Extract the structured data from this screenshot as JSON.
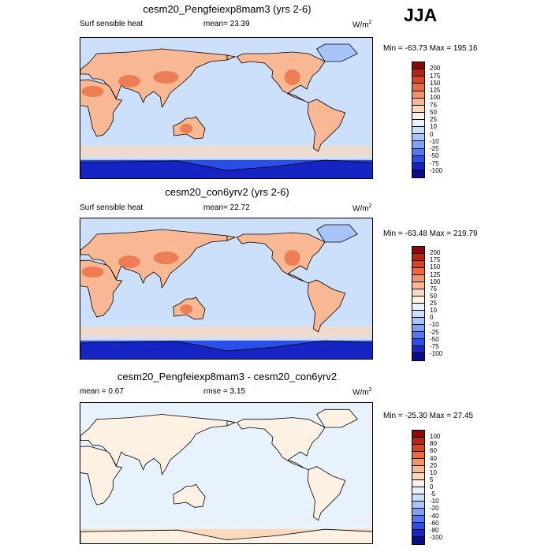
{
  "season": "JJA",
  "colors": {
    "abs_scale": [
      "#0a0a8c",
      "#1525c4",
      "#2a4ee8",
      "#5078f0",
      "#7ea0f5",
      "#a8c4f8",
      "#cde0fb",
      "#e8f2fd",
      "#fdf1e4",
      "#fcd8bc",
      "#f8b893",
      "#f39568",
      "#ea6a3f",
      "#d84421",
      "#b82412",
      "#8c0808"
    ],
    "diff_scale": [
      "#0a0a8c",
      "#1525c4",
      "#2a4ee8",
      "#5078f0",
      "#7ea0f5",
      "#a8c4f8",
      "#cde0fb",
      "#e8f2fd",
      "#fdf1e4",
      "#fcd8bc",
      "#f8b893",
      "#f39568",
      "#ea6a3f",
      "#d84421",
      "#b82412",
      "#8c0808"
    ],
    "coast": "#000000"
  },
  "panels": [
    {
      "title": "cesm20_Pengfeiexp8mam3 (yrs 2-6)",
      "left_label": "Surf sensible heat",
      "center_label": "mean=  23.39",
      "units": "W/m",
      "units_sup": "2",
      "minmax": "Min = -63.73 Max = 195.16",
      "levels": [
        "200",
        "175",
        "150",
        "125",
        "100",
        "75",
        "50",
        "25",
        "10",
        "0",
        "-10",
        "-25",
        "-50",
        "-75",
        "-100"
      ]
    },
    {
      "title": "cesm20_con6yrv2 (yrs 2-6)",
      "left_label": "Surf sensible heat",
      "center_label": "mean=  22.72",
      "units": "W/m",
      "units_sup": "2",
      "minmax": "Min = -63.48 Max = 219.79",
      "levels": [
        "200",
        "175",
        "150",
        "125",
        "100",
        "75",
        "50",
        "25",
        "10",
        "0",
        "-10",
        "-25",
        "-50",
        "-75",
        "-100"
      ]
    },
    {
      "title": "cesm20_Pengfeiexp8mam3 - cesm20_con6yrv2",
      "left_label": "mean =   0.67",
      "center_label": "rmse =   3.15",
      "units": "W/m",
      "units_sup": "2",
      "minmax": "Min = -25.30 Max =  27.45",
      "levels": [
        "100",
        "80",
        "60",
        "40",
        "20",
        "10",
        "5",
        "0",
        "-5",
        "-10",
        "-20",
        "-40",
        "-60",
        "-80",
        "-100"
      ]
    }
  ],
  "chart_data": [
    {
      "type": "heatmap",
      "title": "cesm20_Pengfeiexp8mam3 (yrs 2-6)",
      "variable": "Surf sensible heat",
      "units": "W/m2",
      "mean": 23.39,
      "min": -63.73,
      "max": 195.16,
      "contour_levels": [
        -100,
        -75,
        -50,
        -25,
        -10,
        0,
        10,
        25,
        50,
        75,
        100,
        125,
        150,
        175,
        200
      ],
      "projection": "cylindrical equidistant, centered 180E",
      "season": "JJA"
    },
    {
      "type": "heatmap",
      "title": "cesm20_con6yrv2 (yrs 2-6)",
      "variable": "Surf sensible heat",
      "units": "W/m2",
      "mean": 22.72,
      "min": -63.48,
      "max": 219.79,
      "contour_levels": [
        -100,
        -75,
        -50,
        -25,
        -10,
        0,
        10,
        25,
        50,
        75,
        100,
        125,
        150,
        175,
        200
      ],
      "projection": "cylindrical equidistant, centered 180E",
      "season": "JJA"
    },
    {
      "type": "heatmap",
      "title": "cesm20_Pengfeiexp8mam3 - cesm20_con6yrv2",
      "units": "W/m2",
      "mean": 0.67,
      "rmse": 3.15,
      "min": -25.3,
      "max": 27.45,
      "contour_levels": [
        -100,
        -80,
        -60,
        -40,
        -20,
        -10,
        -5,
        0,
        5,
        10,
        20,
        40,
        60,
        80,
        100
      ],
      "projection": "cylindrical equidistant, centered 180E",
      "season": "JJA"
    }
  ]
}
